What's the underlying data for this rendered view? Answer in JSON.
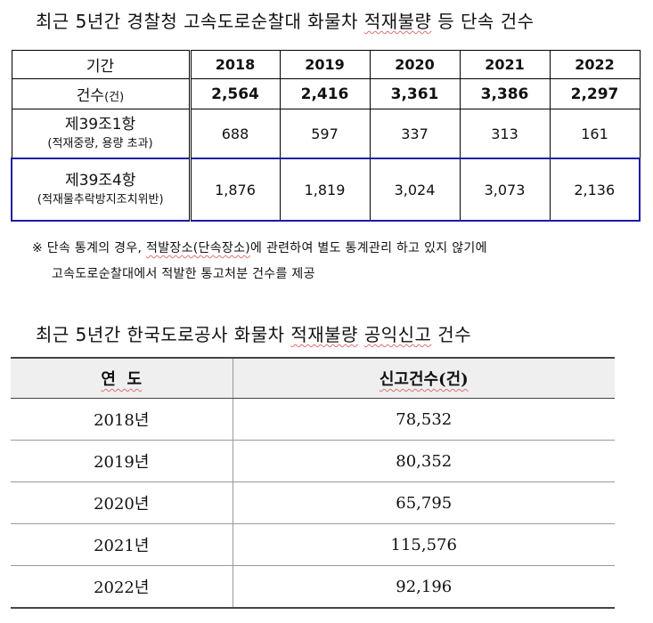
{
  "title1": {
    "text_before": "최근 5년간 경찰청 고속도로순찰대 화물차 ",
    "text_underlined": "적재불량",
    "text_after": " 등 단속 건수"
  },
  "table1": {
    "header_label": "기간",
    "years": [
      "2018",
      "2019",
      "2020",
      "2021",
      "2022"
    ],
    "total_row": {
      "label": "건수",
      "unit": "(건)",
      "values": [
        "2,564",
        "2,416",
        "3,361",
        "3,386",
        "2,297"
      ]
    },
    "rows": [
      {
        "label": "제39조1항",
        "sub": "(적재중량, 용량 초과)",
        "values": [
          "688",
          "597",
          "337",
          "313",
          "161"
        ]
      },
      {
        "label": "제39조4항",
        "sub": "(적재물추락방지조치위반)",
        "values": [
          "1,876",
          "1,819",
          "3,024",
          "3,073",
          "2,136"
        ]
      }
    ]
  },
  "note": {
    "line1_a": "※ 단속 통계의 경우, ",
    "line1_u": "적발장소(단속장소)",
    "line1_b": "에 관련하여 별도 통계관리 하고 있지 않기에",
    "line2": "고속도로순찰대에서 적발한 통고처분 건수를 제공"
  },
  "title2": {
    "text_before": "최근 5년간 한국도로공사 화물차 ",
    "text_underlined": "적재불량",
    "text_middle": " ",
    "text_underlined2": "공익신고",
    "text_after": " 건수"
  },
  "table2": {
    "col1": "연  도",
    "col2": "신고건수(건)",
    "rows": [
      {
        "year": "2018년",
        "count": "78,532"
      },
      {
        "year": "2019년",
        "count": "80,352"
      },
      {
        "year": "2020년",
        "count": "65,795"
      },
      {
        "year": "2021년",
        "count": "115,576"
      },
      {
        "year": "2022년",
        "count": "92,196"
      }
    ]
  }
}
